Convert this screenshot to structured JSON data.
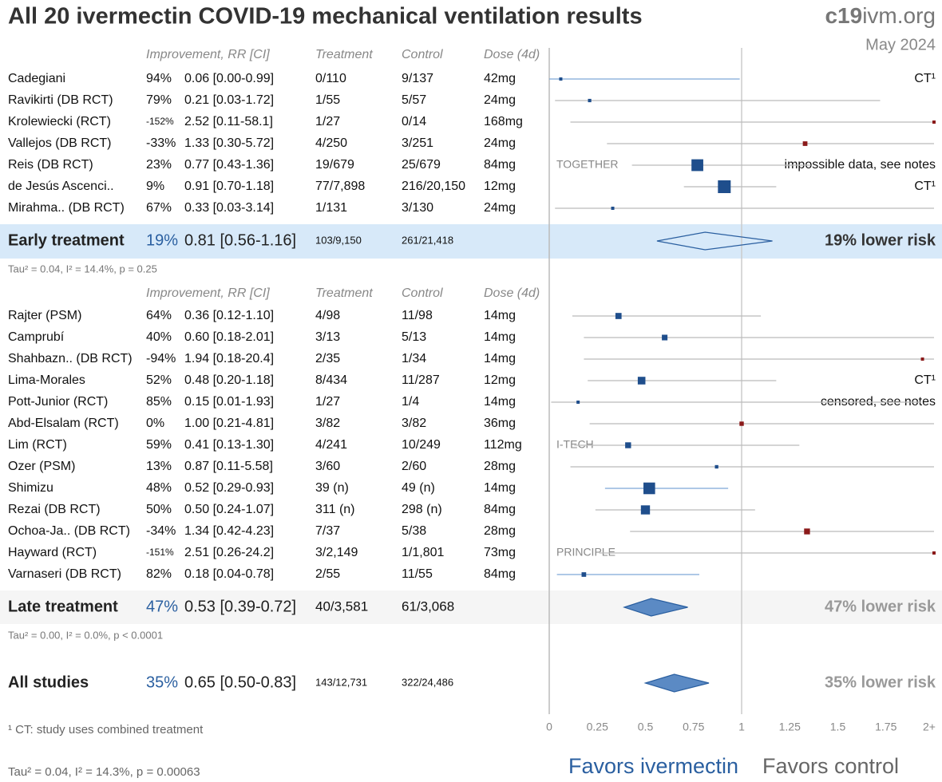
{
  "title": "All 20 ivermectin COVID-19 mechanical ventilation results",
  "brand": {
    "bold": "c19",
    "rest": "ivm.org"
  },
  "date": "May 2024",
  "columns": [
    "Improvement, RR [CI]",
    "Treatment",
    "Control",
    "Dose (4d)"
  ],
  "groups": [
    {
      "studies": [
        {
          "name": "Cadegiani",
          "improvement": "94%",
          "rr": 0.06,
          "lo": 0.0,
          "hi": 0.99,
          "ci_label": "0.06 [0.00-0.99]",
          "treatment": "0/110",
          "control": "9/137",
          "dose": "42mg",
          "note": "CT¹"
        },
        {
          "name": "Ravikirti (DB RCT)",
          "improvement": "79%",
          "rr": 0.21,
          "lo": 0.03,
          "hi": 1.72,
          "ci_label": "0.21 [0.03-1.72]",
          "treatment": "1/55",
          "control": "5/57",
          "dose": "24mg"
        },
        {
          "name": "Krolewiecki (RCT)",
          "improvement": "-152%",
          "rr": 2.52,
          "lo": 0.11,
          "hi": 58.1,
          "ci_label": "2.52 [0.11-58.1]",
          "treatment": "1/27",
          "control": "0/14",
          "dose": "168mg"
        },
        {
          "name": "Vallejos (DB RCT)",
          "improvement": "-33%",
          "rr": 1.33,
          "lo": 0.3,
          "hi": 5.72,
          "ci_label": "1.33 [0.30-5.72]",
          "treatment": "4/250",
          "control": "3/251",
          "dose": "24mg"
        },
        {
          "name": "Reis (DB RCT)",
          "improvement": "23%",
          "rr": 0.77,
          "lo": 0.43,
          "hi": 1.36,
          "ci_label": "0.77 [0.43-1.36]",
          "treatment": "19/679",
          "control": "25/679",
          "dose": "84mg",
          "trial": "TOGETHER",
          "note": "impossible data, see notes"
        },
        {
          "name": "de Jesús Ascenci..",
          "improvement": "9%",
          "rr": 0.91,
          "lo": 0.7,
          "hi": 1.18,
          "ci_label": "0.91 [0.70-1.18]",
          "treatment": "77/7,898",
          "control": "216/20,150",
          "dose": "12mg",
          "note": "CT¹"
        },
        {
          "name": "Mirahma.. (DB RCT)",
          "improvement": "67%",
          "rr": 0.33,
          "lo": 0.03,
          "hi": 3.14,
          "ci_label": "0.33 [0.03-3.14]",
          "treatment": "1/131",
          "control": "3/130",
          "dose": "24mg"
        }
      ],
      "summary": {
        "name": "Early treatment",
        "improvement": "19%",
        "rr": 0.81,
        "lo": 0.56,
        "hi": 1.16,
        "ci_label": "0.81 [0.56-1.16]",
        "treatment": "103/9,150",
        "control": "261/21,418",
        "risk": "19% lower risk"
      },
      "stats": "Tau² = 0.04, I² = 14.4%, p = 0.25"
    },
    {
      "studies": [
        {
          "name": "Rajter (PSM)",
          "improvement": "64%",
          "rr": 0.36,
          "lo": 0.12,
          "hi": 1.1,
          "ci_label": "0.36 [0.12-1.10]",
          "treatment": "4/98",
          "control": "11/98",
          "dose": "14mg"
        },
        {
          "name": "Camprubí",
          "improvement": "40%",
          "rr": 0.6,
          "lo": 0.18,
          "hi": 2.01,
          "ci_label": "0.60 [0.18-2.01]",
          "treatment": "3/13",
          "control": "5/13",
          "dose": "14mg"
        },
        {
          "name": "Shahbazn.. (DB RCT)",
          "improvement": "-94%",
          "rr": 1.94,
          "lo": 0.18,
          "hi": 20.4,
          "ci_label": "1.94 [0.18-20.4]",
          "treatment": "2/35",
          "control": "1/34",
          "dose": "14mg"
        },
        {
          "name": "Lima-Morales",
          "improvement": "52%",
          "rr": 0.48,
          "lo": 0.2,
          "hi": 1.18,
          "ci_label": "0.48 [0.20-1.18]",
          "treatment": "8/434",
          "control": "11/287",
          "dose": "12mg",
          "note": "CT¹"
        },
        {
          "name": "Pott-Junior (RCT)",
          "improvement": "85%",
          "rr": 0.15,
          "lo": 0.01,
          "hi": 1.93,
          "ci_label": "0.15 [0.01-1.93]",
          "treatment": "1/27",
          "control": "1/4",
          "dose": "14mg",
          "note": "censored, see notes"
        },
        {
          "name": "Abd-Elsalam (RCT)",
          "improvement": "0%",
          "rr": 1.0,
          "lo": 0.21,
          "hi": 4.81,
          "ci_label": "1.00 [0.21-4.81]",
          "treatment": "3/82",
          "control": "3/82",
          "dose": "36mg"
        },
        {
          "name": "Lim (RCT)",
          "improvement": "59%",
          "rr": 0.41,
          "lo": 0.13,
          "hi": 1.3,
          "ci_label": "0.41 [0.13-1.30]",
          "treatment": "4/241",
          "control": "10/249",
          "dose": "112mg",
          "trial": "I-TECH"
        },
        {
          "name": "Ozer (PSM)",
          "improvement": "13%",
          "rr": 0.87,
          "lo": 0.11,
          "hi": 5.58,
          "ci_label": "0.87 [0.11-5.58]",
          "treatment": "3/60",
          "control": "2/60",
          "dose": "28mg"
        },
        {
          "name": "Shimizu",
          "improvement": "48%",
          "rr": 0.52,
          "lo": 0.29,
          "hi": 0.93,
          "ci_label": "0.52 [0.29-0.93]",
          "treatment": "39 (n)",
          "control": "49 (n)",
          "dose": "14mg"
        },
        {
          "name": "Rezai (DB RCT)",
          "improvement": "50%",
          "rr": 0.5,
          "lo": 0.24,
          "hi": 1.07,
          "ci_label": "0.50 [0.24-1.07]",
          "treatment": "311 (n)",
          "control": "298 (n)",
          "dose": "84mg"
        },
        {
          "name": "Ochoa-Ja.. (DB RCT)",
          "improvement": "-34%",
          "rr": 1.34,
          "lo": 0.42,
          "hi": 4.23,
          "ci_label": "1.34 [0.42-4.23]",
          "treatment": "7/37",
          "control": "5/38",
          "dose": "28mg"
        },
        {
          "name": "Hayward (RCT)",
          "improvement": "-151%",
          "rr": 2.51,
          "lo": 0.26,
          "hi": 24.2,
          "ci_label": "2.51 [0.26-24.2]",
          "treatment": "3/2,149",
          "control": "1/1,801",
          "dose": "73mg",
          "trial": "PRINCIPLE"
        },
        {
          "name": "Varnaseri (DB RCT)",
          "improvement": "82%",
          "rr": 0.18,
          "lo": 0.04,
          "hi": 0.78,
          "ci_label": "0.18 [0.04-0.78]",
          "treatment": "2/55",
          "control": "11/55",
          "dose": "84mg"
        }
      ],
      "summary": {
        "name": "Late treatment",
        "improvement": "47%",
        "rr": 0.53,
        "lo": 0.39,
        "hi": 0.72,
        "ci_label": "0.53 [0.39-0.72]",
        "treatment": "40/3,581",
        "control": "61/3,068",
        "risk": "47% lower risk"
      },
      "stats": "Tau² = 0.00, I² = 0.0%, p < 0.0001"
    }
  ],
  "overall": {
    "name": "All studies",
    "improvement": "35%",
    "rr": 0.65,
    "lo": 0.5,
    "hi": 0.83,
    "ci_label": "0.65 [0.50-0.83]",
    "treatment": "143/12,731",
    "control": "322/24,486",
    "risk": "35% lower risk"
  },
  "overall_stats": "Tau² = 0.04, I² = 14.3%, p = 0.00063",
  "footnote": "¹ CT: study uses combined treatment",
  "xlim": [
    0,
    2
  ],
  "xticks": [
    0,
    0.25,
    0.5,
    0.75,
    1,
    1.25,
    1.5,
    1.75,
    {
      "value": 2,
      "label": "2+"
    }
  ],
  "favors": [
    "Favors ivermectin",
    "Favors control"
  ]
}
